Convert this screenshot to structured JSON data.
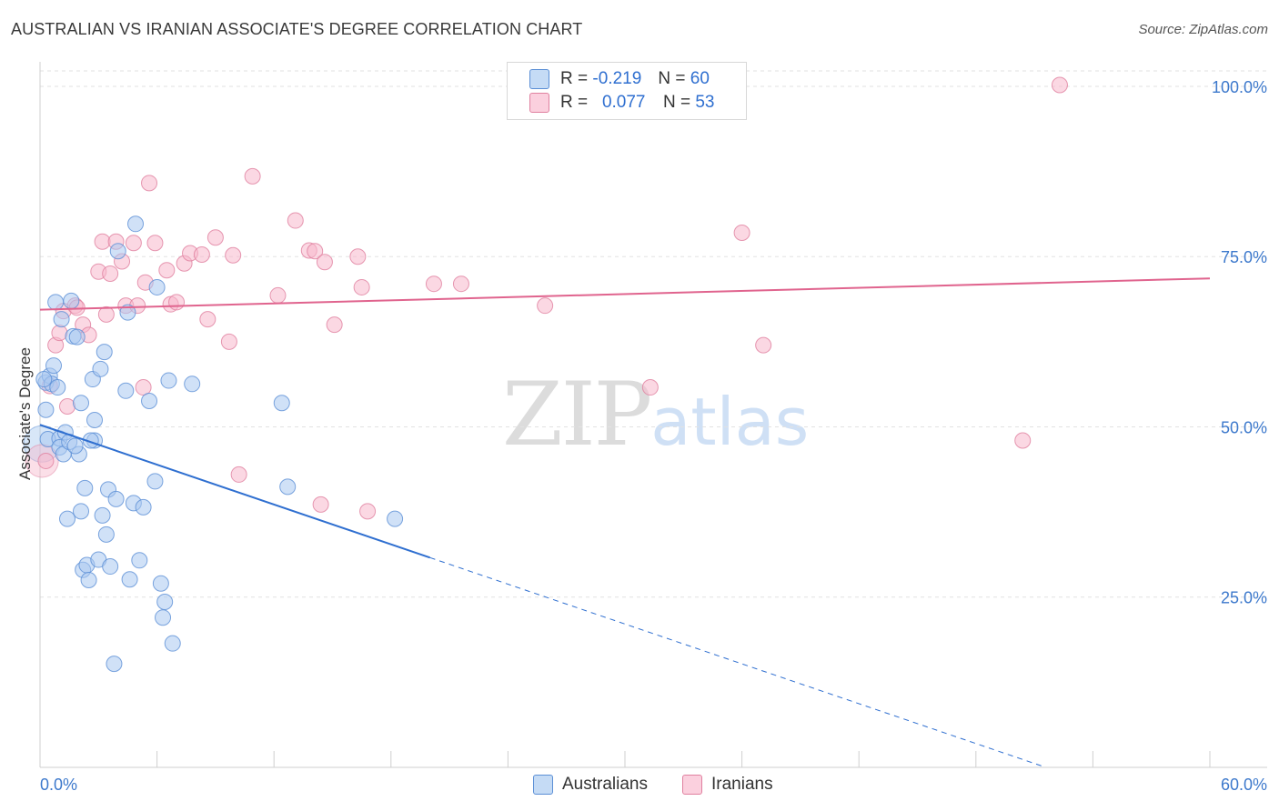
{
  "header": {
    "title": "AUSTRALIAN VS IRANIAN ASSOCIATE'S DEGREE CORRELATION CHART",
    "source": "Source: ZipAtlas.com"
  },
  "watermark": {
    "zip": "ZIP",
    "atlas": "atlas"
  },
  "legend": {
    "rows": [
      {
        "r_label": "R =",
        "r_value": "-0.219",
        "n_label": "N =",
        "n_value": "60",
        "color": "#a9c9f0"
      },
      {
        "r_label": "R =",
        "r_value": "0.077",
        "n_label": "N =",
        "n_value": "53",
        "color": "#f7b8cc"
      }
    ]
  },
  "bottom_legend": {
    "australians": "Australians",
    "iranians": "Iranians"
  },
  "colors": {
    "australians_fill": "#a9c9f0",
    "australians_stroke": "#5b8fd6",
    "australians_line": "#2f6fd0",
    "iranians_fill": "#f7b8cc",
    "iranians_stroke": "#e0809f",
    "iranians_line": "#e0648e",
    "tick_label": "#3d79cc",
    "grid": "#e2e2e2"
  },
  "chart_data": {
    "type": "scatter",
    "title": "AUSTRALIAN VS IRANIAN ASSOCIATE'S DEGREE CORRELATION CHART",
    "xlabel": "",
    "ylabel": "Associate's Degree",
    "xlim": [
      0,
      60
    ],
    "ylim": [
      0,
      102
    ],
    "x_tick_labels": [
      "0.0%",
      "60.0%"
    ],
    "y_ticks": [
      {
        "value": 25,
        "label": "25.0%"
      },
      {
        "value": 50,
        "label": "50.0%"
      },
      {
        "value": 75,
        "label": "75.0%"
      },
      {
        "value": 100,
        "label": "100.0%"
      }
    ],
    "series": [
      {
        "name": "Australians",
        "R": -0.219,
        "N": 60,
        "trend": {
          "x0": 0,
          "y0": 50.3,
          "x1": 20,
          "y1": 30.8,
          "dashed_to_x": 51.5
        },
        "points": [
          [
            0.3,
            56.5
          ],
          [
            0.3,
            52.5
          ],
          [
            0.4,
            48.2
          ],
          [
            0.5,
            57.5
          ],
          [
            0.6,
            56.3
          ],
          [
            0.7,
            59.0
          ],
          [
            0.8,
            68.3
          ],
          [
            0.9,
            55.8
          ],
          [
            1.0,
            48.3
          ],
          [
            1.0,
            47.0
          ],
          [
            1.1,
            65.8
          ],
          [
            1.2,
            46.0
          ],
          [
            1.3,
            49.2
          ],
          [
            1.4,
            36.5
          ],
          [
            1.5,
            47.8
          ],
          [
            1.6,
            68.5
          ],
          [
            1.7,
            63.3
          ],
          [
            1.9,
            63.2
          ],
          [
            2.0,
            46.0
          ],
          [
            2.1,
            53.5
          ],
          [
            2.1,
            37.6
          ],
          [
            2.2,
            29.0
          ],
          [
            2.3,
            41.0
          ],
          [
            2.4,
            29.7
          ],
          [
            2.5,
            27.5
          ],
          [
            2.7,
            57.0
          ],
          [
            2.8,
            51.0
          ],
          [
            2.8,
            48.0
          ],
          [
            3.0,
            30.5
          ],
          [
            3.1,
            58.5
          ],
          [
            3.2,
            37.0
          ],
          [
            3.3,
            61.0
          ],
          [
            3.4,
            34.2
          ],
          [
            3.5,
            40.8
          ],
          [
            3.6,
            29.5
          ],
          [
            3.8,
            15.2
          ],
          [
            3.9,
            39.4
          ],
          [
            4.0,
            75.8
          ],
          [
            4.4,
            55.3
          ],
          [
            4.5,
            66.8
          ],
          [
            4.6,
            27.6
          ],
          [
            4.8,
            38.8
          ],
          [
            4.9,
            79.8
          ],
          [
            5.1,
            30.4
          ],
          [
            5.3,
            38.2
          ],
          [
            5.6,
            53.8
          ],
          [
            5.9,
            42.0
          ],
          [
            6.0,
            70.5
          ],
          [
            6.2,
            27.0
          ],
          [
            6.3,
            22.0
          ],
          [
            6.4,
            24.3
          ],
          [
            6.6,
            56.8
          ],
          [
            6.8,
            18.2
          ],
          [
            7.8,
            56.3
          ],
          [
            12.4,
            53.5
          ],
          [
            12.7,
            41.2
          ],
          [
            18.2,
            36.5
          ],
          [
            0.2,
            57.0
          ],
          [
            1.8,
            47.2
          ],
          [
            2.6,
            48.0
          ]
        ]
      },
      {
        "name": "Iranians",
        "R": 0.077,
        "N": 53,
        "trend": {
          "x0": 0,
          "y0": 67.2,
          "x1": 60,
          "y1": 71.8
        },
        "points": [
          [
            0.3,
            45.0
          ],
          [
            0.5,
            56.0
          ],
          [
            0.8,
            62.0
          ],
          [
            1.0,
            63.8
          ],
          [
            1.2,
            67.0
          ],
          [
            1.4,
            53.0
          ],
          [
            1.8,
            67.8
          ],
          [
            1.9,
            67.5
          ],
          [
            2.2,
            65.0
          ],
          [
            2.5,
            63.5
          ],
          [
            3.0,
            72.8
          ],
          [
            3.2,
            77.2
          ],
          [
            3.4,
            66.5
          ],
          [
            3.6,
            72.5
          ],
          [
            3.9,
            77.2
          ],
          [
            4.2,
            74.3
          ],
          [
            4.4,
            67.8
          ],
          [
            4.8,
            77.0
          ],
          [
            5.0,
            67.8
          ],
          [
            5.3,
            55.8
          ],
          [
            5.4,
            71.2
          ],
          [
            5.6,
            85.8
          ],
          [
            5.9,
            77.0
          ],
          [
            6.5,
            73.0
          ],
          [
            6.7,
            68.0
          ],
          [
            7.0,
            68.3
          ],
          [
            7.4,
            74.0
          ],
          [
            7.7,
            75.5
          ],
          [
            8.3,
            75.3
          ],
          [
            8.6,
            65.8
          ],
          [
            9.0,
            77.8
          ],
          [
            9.7,
            62.5
          ],
          [
            9.9,
            75.2
          ],
          [
            10.2,
            43.0
          ],
          [
            10.9,
            86.8
          ],
          [
            12.2,
            69.3
          ],
          [
            13.1,
            80.3
          ],
          [
            13.8,
            75.9
          ],
          [
            14.1,
            75.8
          ],
          [
            14.4,
            38.6
          ],
          [
            14.6,
            74.2
          ],
          [
            15.1,
            65.0
          ],
          [
            16.3,
            75.0
          ],
          [
            16.5,
            70.5
          ],
          [
            16.8,
            37.6
          ],
          [
            20.2,
            71.0
          ],
          [
            21.6,
            71.0
          ],
          [
            25.9,
            67.8
          ],
          [
            31.3,
            55.8
          ],
          [
            36.0,
            78.5
          ],
          [
            37.1,
            62.0
          ],
          [
            50.4,
            48.0
          ],
          [
            52.3,
            100.2
          ]
        ]
      }
    ]
  }
}
